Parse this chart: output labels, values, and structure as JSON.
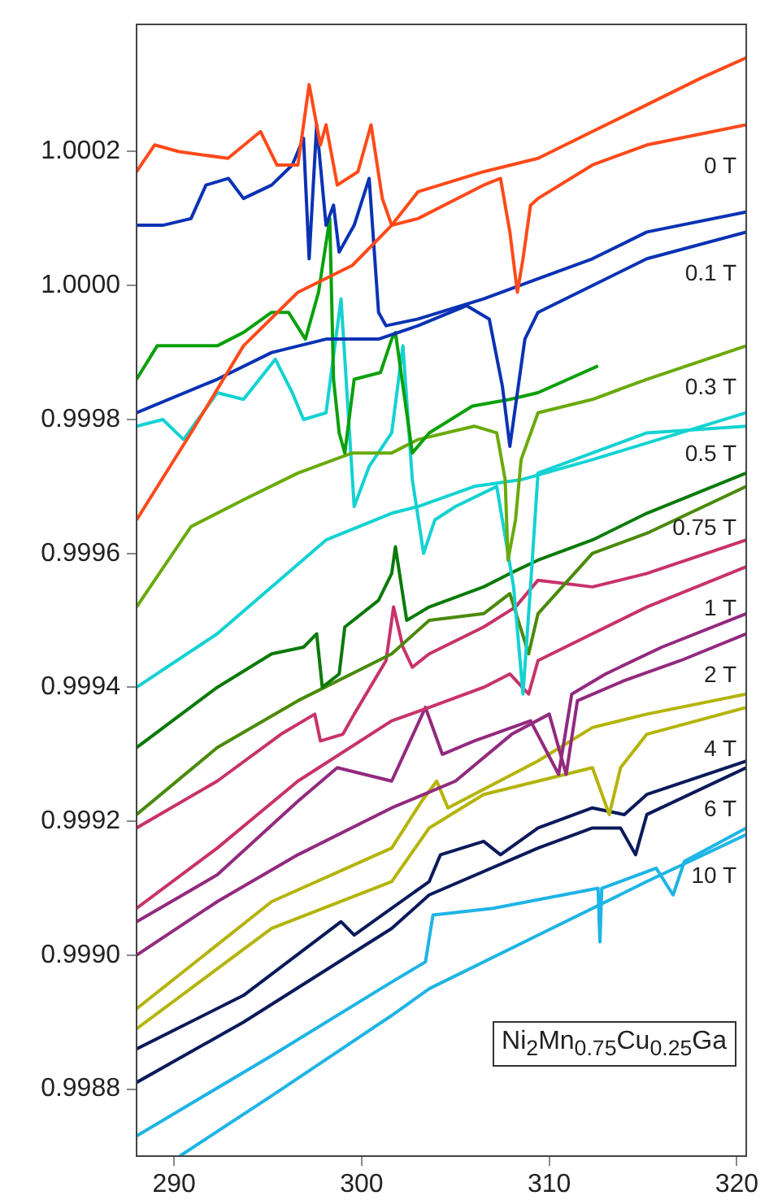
{
  "chart_data": {
    "type": "line",
    "xlim": [
      288,
      320.5
    ],
    "ylim": [
      0.9987,
      1.00039
    ],
    "xticks": [
      290,
      300,
      310,
      320
    ],
    "yticks": [
      0.9988,
      {
        "value": 0.999,
        "label": "0.9990"
      },
      0.9992,
      0.9994,
      0.9996,
      0.9998,
      {
        "value": 1,
        "label": "1.0000"
      },
      1.0002
    ],
    "grid": false,
    "legend": false,
    "annotations": [
      "Ni$_{2}$Mn$_{0.75}$Cu$_{0.25}$Ga"
    ],
    "series": [
      {
        "color": "#ff4a1a",
        "x": [
          288,
          288.96,
          290.26,
          292.87,
          294.61,
          295.48,
          296.6,
          297.2,
          297.8,
          298.1,
          298.7,
          299.8,
          300.5,
          301.1,
          301.6,
          303,
          306.5,
          309.4,
          312.3,
          315.2,
          318.1,
          320.5
        ],
        "values": [
          1.00017,
          1.00021,
          1.0002,
          1.00019,
          1.00023,
          1.00018,
          1.00018,
          1.0003,
          1.00021,
          1.00024,
          1.00015,
          1.00017,
          1.00024,
          1.00013,
          1.00009,
          1.00014,
          1.00017,
          1.00019,
          1.00023,
          1.00027,
          1.00031,
          1.00034
        ]
      },
      {
        "name": "0 T",
        "color": "#ff4a1a",
        "x": [
          288,
          290.9,
          293.7,
          296.6,
          299.5,
          301.6,
          303,
          306.5,
          307.4,
          307.9,
          308.3,
          308.6,
          309,
          309.4,
          312.3,
          315.2,
          320.5
        ],
        "values": [
          0.99965,
          0.99978,
          0.99991,
          0.99999,
          1.00003,
          1.00009,
          1.0001,
          1.00015,
          1.00016,
          1.00008,
          0.99999,
          1.00004,
          1.00012,
          1.00013,
          1.00018,
          1.00021,
          1.00024
        ]
      },
      {
        "color": "#0a32b4",
        "x": [
          288,
          289.4,
          290.9,
          291.7,
          292.9,
          293.7,
          295.2,
          296.3,
          296.9,
          297.2,
          297.6,
          298.1,
          298.5,
          298.8,
          299.6,
          300.4,
          300.9,
          301.3,
          303,
          306.5,
          309.4,
          312.3,
          315.2,
          320.5
        ],
        "values": [
          1.00009,
          1.00009,
          1.0001,
          1.00015,
          1.00016,
          1.00013,
          1.00015,
          1.00018,
          1.00022,
          1.00004,
          1.00024,
          1.00009,
          1.00012,
          1.00005,
          1.00009,
          1.00016,
          0.99996,
          0.99994,
          0.99995,
          0.99998,
          1.00001,
          1.00004,
          1.00008,
          1.00011
        ]
      },
      {
        "name": "0.1 T",
        "color": "#0a32b4",
        "x": [
          288,
          292.3,
          295.2,
          298.1,
          300.9,
          303,
          305.6,
          306.8,
          307.5,
          307.9,
          308.3,
          308.7,
          309.4,
          312.3,
          315.2,
          320.5
        ],
        "values": [
          0.99981,
          0.99986,
          0.9999,
          0.99992,
          0.99992,
          0.99994,
          0.99997,
          0.99995,
          0.99985,
          0.99976,
          0.99984,
          0.99992,
          0.99996,
          1,
          1.00004,
          1.00008
        ]
      },
      {
        "color": "#0aa00a",
        "x": [
          288,
          289.1,
          292.3,
          293.7,
          295.2,
          296.1,
          297,
          297.7,
          298.3,
          298.5,
          298.8,
          299.1,
          299.6,
          301,
          301.6,
          301.8,
          302.7,
          303.6,
          305.9,
          307.9,
          309.4,
          312.6
        ],
        "values": [
          0.99986,
          0.99991,
          0.99991,
          0.99993,
          0.99996,
          0.99996,
          0.99992,
          0.99999,
          1.0001,
          0.99986,
          0.99978,
          0.99975,
          0.99986,
          0.99987,
          0.99992,
          0.99993,
          0.99975,
          0.99978,
          0.99982,
          0.99983,
          0.99984,
          0.99988
        ]
      },
      {
        "name": "0.3 T",
        "color": "#6aaa0a",
        "x": [
          288,
          290.9,
          293.7,
          296.6,
          299.5,
          301.6,
          303,
          306,
          307.2,
          307.65,
          307.8,
          308.2,
          308.5,
          309.4,
          312.3,
          315.2,
          320.5
        ],
        "values": [
          0.99952,
          0.99964,
          0.99968,
          0.99972,
          0.99975,
          0.99975,
          0.99977,
          0.99979,
          0.99978,
          0.99971,
          0.99959,
          0.99965,
          0.99974,
          0.99981,
          0.99983,
          0.99986,
          0.99991
        ]
      },
      {
        "color": "#14d2d2",
        "x": [
          288,
          289.4,
          290.5,
          292.3,
          293.7,
          295.4,
          296.3,
          296.9,
          298.1,
          298.9,
          299.6,
          300.4,
          301.6,
          302.2,
          302.7,
          303.3,
          303.9,
          305,
          307.2,
          308.1,
          308.6,
          309,
          309.4,
          312.3,
          315.2,
          320.5
        ],
        "values": [
          0.99979,
          0.9998,
          0.99977,
          0.99984,
          0.99983,
          0.99989,
          0.99984,
          0.9998,
          0.99981,
          0.99998,
          0.99967,
          0.99973,
          0.99978,
          0.99991,
          0.99971,
          0.9996,
          0.99965,
          0.99967,
          0.9997,
          0.99955,
          0.99939,
          0.99955,
          0.99972,
          0.99975,
          0.99978,
          0.99979
        ]
      },
      {
        "name": "0.5 T",
        "color": "#14d2d2",
        "x": [
          288,
          292.3,
          298.1,
          301.6,
          303,
          306,
          308.5,
          312.3,
          320.5
        ],
        "values": [
          0.9994,
          0.99948,
          0.99962,
          0.99966,
          0.99967,
          0.9997,
          0.99971,
          0.99974,
          0.99981
        ]
      },
      {
        "color": "#0a7a0a",
        "x": [
          288,
          292.3,
          295.2,
          296.9,
          297.6,
          297.9,
          298.8,
          299.1,
          300.9,
          301.6,
          301.8,
          302.4,
          303.6,
          306.5,
          307.9,
          309.4,
          312.3,
          315.2,
          320.5
        ],
        "values": [
          0.99931,
          0.9994,
          0.99945,
          0.99946,
          0.99948,
          0.9994,
          0.99942,
          0.99949,
          0.99953,
          0.99957,
          0.99961,
          0.9995,
          0.99952,
          0.99955,
          0.99957,
          0.99959,
          0.99962,
          0.99966,
          0.99972
        ]
      },
      {
        "name": "0.75 T",
        "color": "#4a8a0a",
        "x": [
          288,
          292.3,
          296.6,
          301.6,
          303.6,
          306.5,
          307.9,
          308.9,
          309.4,
          312.3,
          315.2,
          320.5
        ],
        "values": [
          0.99921,
          0.99931,
          0.99938,
          0.99945,
          0.9995,
          0.99951,
          0.99954,
          0.99945,
          0.99951,
          0.9996,
          0.99963,
          0.9997
        ]
      },
      {
        "color": "#c8326a",
        "x": [
          288,
          292.3,
          295.7,
          297.5,
          297.8,
          299,
          299.6,
          301.3,
          301.7,
          302.2,
          302.7,
          303.6,
          306.5,
          308.2,
          309.4,
          312.3,
          315.2,
          320.5
        ],
        "values": [
          0.99919,
          0.99926,
          0.99933,
          0.99936,
          0.99932,
          0.99933,
          0.99936,
          0.99944,
          0.99952,
          0.99946,
          0.99943,
          0.99945,
          0.99949,
          0.99952,
          0.99956,
          0.99955,
          0.99957,
          0.99962
        ]
      },
      {
        "name": "1 T",
        "color": "#c8326a",
        "x": [
          288,
          292.3,
          296.6,
          301.6,
          303.6,
          306.5,
          307.9,
          308.9,
          309.4,
          312.3,
          315.2,
          320.5
        ],
        "values": [
          0.99907,
          0.99916,
          0.99926,
          0.99935,
          0.99937,
          0.9994,
          0.99942,
          0.99939,
          0.99944,
          0.99948,
          0.99952,
          0.99958
        ]
      },
      {
        "color": "#922a7e",
        "x": [
          288,
          292.3,
          296.6,
          298.7,
          301.6,
          303.4,
          304.3,
          306,
          309,
          310.5,
          311.2,
          313,
          316,
          320.5
        ],
        "values": [
          0.99905,
          0.99912,
          0.99923,
          0.99928,
          0.99926,
          0.99937,
          0.9993,
          0.99932,
          0.99935,
          0.99927,
          0.99939,
          0.99942,
          0.99946,
          0.99951
        ]
      },
      {
        "name": "2 T",
        "color": "#922a7e",
        "x": [
          288,
          292.3,
          296.6,
          301.6,
          305,
          308,
          310,
          310.9,
          311.5,
          314,
          317,
          320.5
        ],
        "values": [
          0.999,
          0.99908,
          0.99915,
          0.99922,
          0.99926,
          0.99933,
          0.99936,
          0.99927,
          0.99938,
          0.99941,
          0.99944,
          0.99948
        ]
      },
      {
        "color": "#b4b40a",
        "x": [
          288,
          295.2,
          301.6,
          303.2,
          304,
          304.6,
          309.4,
          312.3,
          315.2,
          320.5
        ],
        "values": [
          0.99892,
          0.99908,
          0.99916,
          0.99923,
          0.99926,
          0.99922,
          0.99929,
          0.99934,
          0.99936,
          0.99939
        ]
      },
      {
        "name": "4 T",
        "color": "#b4b40a",
        "x": [
          288,
          295.2,
          301.6,
          303.6,
          306.5,
          309.4,
          312.3,
          313.2,
          313.8,
          315.2,
          320.5
        ],
        "values": [
          0.99889,
          0.99904,
          0.99911,
          0.99919,
          0.99924,
          0.99926,
          0.99928,
          0.99921,
          0.99928,
          0.99933,
          0.99937
        ]
      },
      {
        "color": "#0a1a5a",
        "x": [
          288,
          293.7,
          298.9,
          299.6,
          301.6,
          303.6,
          304.2,
          306.5,
          307.4,
          309.4,
          312.3,
          314,
          315.2,
          320.5
        ],
        "values": [
          0.99886,
          0.99894,
          0.99905,
          0.99903,
          0.99907,
          0.99911,
          0.99915,
          0.99917,
          0.99915,
          0.99919,
          0.99922,
          0.99921,
          0.99924,
          0.99929
        ]
      },
      {
        "name": "6 T",
        "color": "#0a1a5a",
        "x": [
          288,
          293.7,
          301.6,
          303.6,
          309.4,
          312.3,
          313.8,
          314.6,
          315.2,
          320.5
        ],
        "values": [
          0.99881,
          0.9989,
          0.99904,
          0.99909,
          0.99916,
          0.99919,
          0.99919,
          0.99915,
          0.99921,
          0.99928
        ]
      },
      {
        "color": "#1eb4e6",
        "x": [
          288,
          295.2,
          301.6,
          303.4,
          303.8,
          307,
          312.6,
          312.7,
          312.8,
          315.7,
          316.6,
          317.2,
          320.5
        ],
        "values": [
          0.99873,
          0.99885,
          0.99896,
          0.99899,
          0.99906,
          0.99907,
          0.9991,
          0.99902,
          0.9991,
          0.99913,
          0.99909,
          0.99914,
          0.99919
        ]
      },
      {
        "name": "10 T",
        "color": "#1eb4e6",
        "x": [
          290.3,
          295.2,
          301.6,
          303.6,
          309.4,
          315.2,
          320.5
        ],
        "values": [
          0.9987,
          0.99879,
          0.99891,
          0.99895,
          0.99903,
          0.99911,
          0.99918
        ]
      }
    ]
  }
}
